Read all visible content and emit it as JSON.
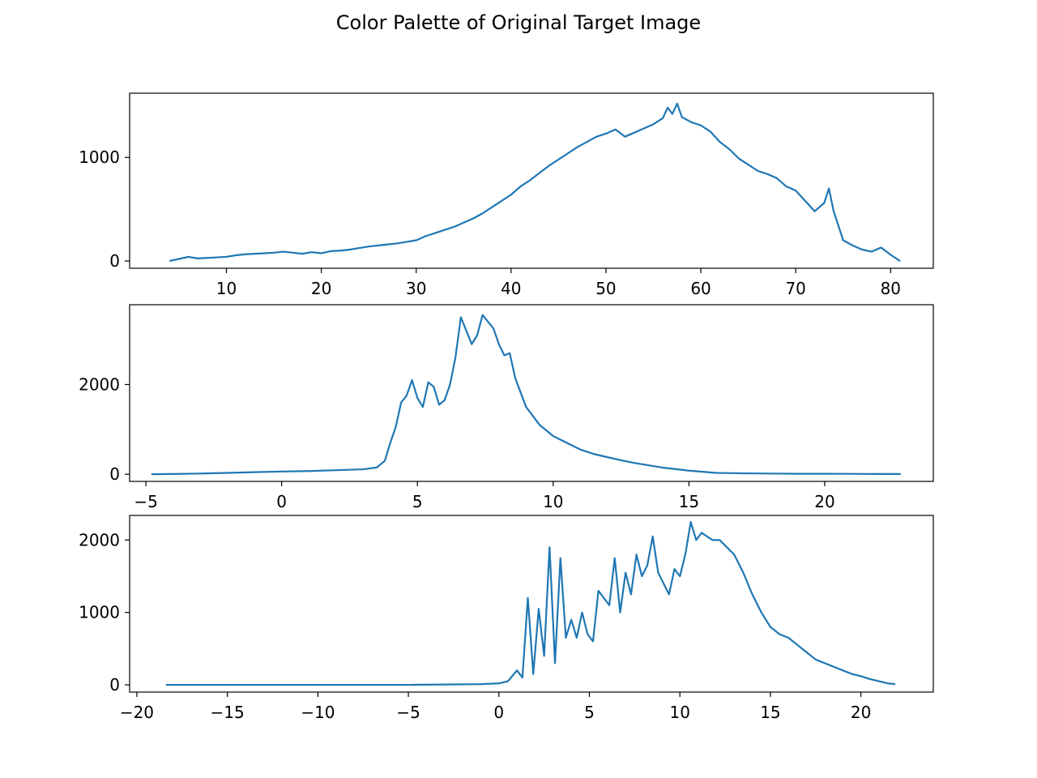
{
  "title": "Color Palette of Original Target Image",
  "line_color": "#1f77b4",
  "chart_data": [
    {
      "type": "line",
      "xlim": [
        -0.2,
        84.5
      ],
      "ylim": [
        -70,
        1620
      ],
      "xticks": [
        10,
        20,
        30,
        40,
        50,
        60,
        70,
        80
      ],
      "xtick_labels": [
        "10",
        "20",
        "30",
        "40",
        "50",
        "60",
        "70",
        "80"
      ],
      "yticks": [
        0,
        1000
      ],
      "ytick_labels": [
        "0",
        "1000"
      ],
      "grid": false,
      "series": [
        {
          "x": [
            4,
            5,
            6,
            7,
            8,
            9,
            10,
            11,
            12,
            13,
            14,
            15,
            16,
            17,
            18,
            19,
            20,
            21,
            22,
            23,
            24,
            25,
            26,
            27,
            28,
            29,
            30,
            31,
            32,
            33,
            34,
            35,
            36,
            37,
            38,
            39,
            40,
            41,
            42,
            43,
            44,
            45,
            46,
            47,
            48,
            49,
            50,
            51,
            52,
            53,
            54,
            55,
            56,
            56.5,
            57,
            57.5,
            58,
            59,
            60,
            61,
            62,
            63,
            64,
            65,
            66,
            67,
            68,
            69,
            70,
            71,
            72,
            73,
            73.5,
            74,
            75,
            76,
            77,
            78,
            79,
            80,
            81
          ],
          "y": [
            0,
            20,
            40,
            25,
            30,
            35,
            40,
            55,
            65,
            70,
            75,
            80,
            90,
            80,
            70,
            85,
            75,
            95,
            100,
            110,
            125,
            140,
            150,
            160,
            170,
            185,
            200,
            240,
            270,
            300,
            330,
            370,
            410,
            460,
            520,
            580,
            640,
            720,
            780,
            850,
            920,
            980,
            1040,
            1100,
            1150,
            1200,
            1230,
            1270,
            1200,
            1240,
            1280,
            1320,
            1380,
            1480,
            1420,
            1520,
            1390,
            1340,
            1310,
            1250,
            1150,
            1080,
            990,
            930,
            870,
            840,
            800,
            720,
            680,
            580,
            480,
            560,
            700,
            480,
            200,
            150,
            110,
            90,
            130,
            60,
            0
          ]
        }
      ]
    },
    {
      "type": "line",
      "xlim": [
        -5.6,
        24
      ],
      "ylim": [
        -160,
        3780
      ],
      "xticks": [
        -5,
        0,
        5,
        10,
        15,
        20
      ],
      "xtick_labels": [
        "−5",
        "0",
        "5",
        "10",
        "15",
        "20"
      ],
      "yticks": [
        0,
        2000
      ],
      "ytick_labels": [
        "0",
        "2000"
      ],
      "grid": false,
      "series": [
        {
          "x": [
            -4.8,
            -4,
            -3,
            -2,
            -1,
            0,
            1,
            2,
            3,
            3.5,
            3.8,
            4,
            4.2,
            4.4,
            4.6,
            4.8,
            5,
            5.2,
            5.4,
            5.6,
            5.8,
            6,
            6.2,
            6.4,
            6.6,
            6.8,
            7,
            7.2,
            7.4,
            7.6,
            7.8,
            8,
            8.2,
            8.4,
            8.6,
            9,
            9.5,
            10,
            10.5,
            11,
            11.5,
            12,
            12.5,
            13,
            13.5,
            14,
            15,
            16,
            17,
            18,
            19,
            20,
            21,
            22,
            22.8
          ],
          "y": [
            0,
            5,
            15,
            30,
            45,
            60,
            70,
            90,
            110,
            150,
            300,
            700,
            1050,
            1600,
            1750,
            2100,
            1700,
            1500,
            2050,
            1950,
            1550,
            1650,
            2000,
            2600,
            3500,
            3200,
            2900,
            3100,
            3550,
            3400,
            3250,
            2900,
            2650,
            2700,
            2150,
            1500,
            1100,
            850,
            700,
            550,
            450,
            380,
            310,
            250,
            200,
            150,
            80,
            30,
            20,
            15,
            10,
            10,
            8,
            5,
            5
          ]
        }
      ]
    },
    {
      "type": "line",
      "xlim": [
        -20.4,
        24
      ],
      "ylim": [
        -100,
        2340
      ],
      "xticks": [
        -20,
        -15,
        -10,
        -5,
        0,
        5,
        10,
        15,
        20
      ],
      "xtick_labels": [
        "−20",
        "−15",
        "−10",
        "−5",
        "0",
        "5",
        "10",
        "15",
        "20"
      ],
      "yticks": [
        0,
        1000,
        2000
      ],
      "ytick_labels": [
        "0",
        "1000",
        "2000"
      ],
      "grid": false,
      "series": [
        {
          "x": [
            -18.4,
            -15,
            -10,
            -5,
            -3,
            -1,
            0,
            0.5,
            1,
            1.3,
            1.6,
            1.9,
            2.2,
            2.5,
            2.8,
            3.1,
            3.4,
            3.7,
            4,
            4.3,
            4.6,
            4.9,
            5.2,
            5.5,
            5.8,
            6.1,
            6.4,
            6.7,
            7,
            7.3,
            7.6,
            7.9,
            8.2,
            8.5,
            8.8,
            9.1,
            9.4,
            9.7,
            10,
            10.3,
            10.6,
            10.9,
            11.2,
            11.5,
            11.8,
            12.2,
            12.6,
            13,
            13.5,
            14,
            14.5,
            15,
            15.5,
            16,
            16.5,
            17,
            17.5,
            18,
            18.5,
            19,
            19.5,
            20,
            20.5,
            21,
            21.5,
            21.9
          ],
          "y": [
            0,
            0,
            0,
            0,
            5,
            10,
            20,
            50,
            200,
            100,
            1200,
            150,
            1050,
            400,
            1900,
            300,
            1750,
            650,
            900,
            650,
            1000,
            700,
            600,
            1300,
            1200,
            1100,
            1750,
            1000,
            1550,
            1250,
            1800,
            1500,
            1650,
            2050,
            1550,
            1400,
            1250,
            1600,
            1500,
            1800,
            2250,
            2000,
            2100,
            2050,
            2000,
            2000,
            1900,
            1800,
            1550,
            1250,
            1000,
            800,
            700,
            650,
            550,
            450,
            350,
            300,
            250,
            200,
            150,
            120,
            80,
            50,
            20,
            10
          ]
        }
      ]
    }
  ]
}
